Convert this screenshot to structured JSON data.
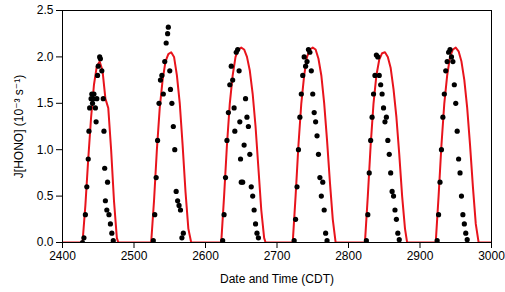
{
  "chart_data": {
    "type": "line",
    "x_label": "Date and Time (CDT)",
    "y_label": "J[HONO] (10⁻³ s⁻¹)",
    "xlim": [
      2400,
      3000
    ],
    "xticks": [
      2400,
      2500,
      2600,
      2700,
      2800,
      2900,
      3000
    ],
    "ylim": [
      0,
      2.5
    ],
    "yticks": [
      {
        "value": 0,
        "label": "0.0"
      },
      0.5,
      {
        "value": 1,
        "label": "1.0"
      },
      1.5,
      {
        "value": 2,
        "label": "2.0"
      },
      2.5
    ],
    "grid": false,
    "series": [
      {
        "type": "line",
        "color": "#e8141c",
        "line_style": "solid",
        "x": [
          2400,
          2428,
          2432,
          2436,
          2440,
          2444,
          2448,
          2452,
          2456,
          2460,
          2464,
          2468,
          2472,
          2476,
          2478,
          2524,
          2528,
          2532,
          2536,
          2540,
          2544,
          2548,
          2552,
          2556,
          2560,
          2564,
          2568,
          2572,
          2576,
          2580,
          2622,
          2626,
          2630,
          2634,
          2638,
          2642,
          2646,
          2650,
          2654,
          2658,
          2662,
          2666,
          2670,
          2674,
          2678,
          2682,
          2684,
          2722,
          2726,
          2730,
          2734,
          2738,
          2742,
          2746,
          2750,
          2754,
          2758,
          2762,
          2766,
          2770,
          2774,
          2778,
          2782,
          2823,
          2827,
          2831,
          2835,
          2839,
          2843,
          2847,
          2851,
          2855,
          2859,
          2863,
          2867,
          2871,
          2875,
          2879,
          2882,
          2922,
          2926,
          2930,
          2934,
          2938,
          2942,
          2946,
          2950,
          2954,
          2958,
          2962,
          2966,
          2970,
          2974,
          2978,
          2982,
          3000
        ],
        "values": [
          0,
          0,
          0.4,
          0.9,
          1.35,
          1.7,
          1.9,
          1.95,
          1.85,
          1.55,
          1.45,
          1.0,
          0.45,
          0.05,
          0,
          0,
          0.45,
          1.0,
          1.45,
          1.75,
          1.95,
          2.03,
          2.05,
          2.0,
          1.8,
          1.5,
          1.05,
          0.55,
          0.15,
          0,
          0,
          0.5,
          1.05,
          1.5,
          1.8,
          2.0,
          2.08,
          2.1,
          2.08,
          2.0,
          1.85,
          1.6,
          1.25,
          0.8,
          0.35,
          0.05,
          0,
          0,
          0.5,
          1.05,
          1.5,
          1.8,
          2.0,
          2.08,
          2.1,
          2.08,
          1.98,
          1.8,
          1.5,
          1.1,
          0.65,
          0.25,
          0,
          0,
          0.5,
          1.05,
          1.5,
          1.8,
          1.97,
          2.04,
          2.05,
          2.0,
          1.88,
          1.65,
          1.35,
          0.95,
          0.5,
          0.15,
          0,
          0,
          0.5,
          1.05,
          1.5,
          1.8,
          2.0,
          2.08,
          2.1,
          2.06,
          1.95,
          1.75,
          1.45,
          1.05,
          0.6,
          0.2,
          0,
          0
        ]
      },
      {
        "type": "scatter",
        "color": "#000000",
        "marker": "circle",
        "x": [
          2428,
          2430,
          2432,
          2434,
          2436,
          2437,
          2438,
          2440,
          2441,
          2442,
          2443,
          2444,
          2446,
          2447,
          2448,
          2449,
          2450,
          2452,
          2453,
          2455,
          2457,
          2458,
          2459,
          2460,
          2462,
          2463,
          2465,
          2467,
          2469,
          2471,
          2527,
          2529,
          2531,
          2533,
          2535,
          2537,
          2539,
          2541,
          2543,
          2545,
          2547,
          2548,
          2550,
          2551,
          2553,
          2555,
          2557,
          2559,
          2561,
          2563,
          2565,
          2567,
          2569,
          2624,
          2626,
          2628,
          2630,
          2632,
          2634,
          2636,
          2638,
          2640,
          2641,
          2643,
          2645,
          2647,
          2648,
          2649,
          2650,
          2652,
          2654,
          2656,
          2658,
          2660,
          2662,
          2664,
          2666,
          2668,
          2670,
          2672,
          2674,
          2724,
          2726,
          2728,
          2730,
          2732,
          2734,
          2736,
          2738,
          2740,
          2742,
          2744,
          2746,
          2748,
          2750,
          2752,
          2754,
          2756,
          2758,
          2760,
          2762,
          2764,
          2766,
          2768,
          2770,
          2825,
          2827,
          2829,
          2831,
          2833,
          2835,
          2837,
          2839,
          2841,
          2843,
          2845,
          2847,
          2849,
          2851,
          2853,
          2855,
          2857,
          2859,
          2861,
          2863,
          2865,
          2867,
          2869,
          2871,
          2924,
          2926,
          2928,
          2930,
          2932,
          2934,
          2936,
          2938,
          2940,
          2942,
          2944,
          2946,
          2948,
          2950,
          2952,
          2954,
          2956,
          2958,
          2960,
          2962,
          2964,
          2966
        ],
        "values": [
          0.0,
          0.05,
          0.3,
          0.6,
          0.9,
          1.2,
          1.45,
          1.55,
          1.6,
          1.5,
          1.55,
          1.6,
          1.45,
          1.3,
          1.55,
          1.8,
          1.9,
          2.0,
          1.98,
          1.85,
          1.55,
          1.2,
          0.8,
          0.45,
          0.35,
          0.65,
          0.3,
          0.2,
          0.1,
          0.02,
          0.02,
          0.3,
          0.7,
          1.1,
          1.5,
          1.75,
          1.8,
          1.6,
          1.95,
          2.15,
          2.25,
          2.32,
          1.85,
          1.65,
          1.5,
          1.25,
          1.0,
          0.55,
          0.45,
          0.4,
          0.35,
          0.05,
          0.1,
          0.02,
          0.3,
          0.7,
          1.1,
          1.4,
          1.7,
          1.9,
          1.75,
          1.45,
          1.2,
          2.05,
          2.08,
          1.85,
          1.3,
          0.9,
          0.65,
          0.65,
          1.05,
          1.55,
          1.35,
          1.25,
          0.95,
          0.6,
          0.5,
          0.35,
          0.2,
          0.1,
          0.05,
          0.02,
          0.25,
          0.6,
          1.0,
          1.35,
          1.6,
          1.8,
          2.0,
          1.9,
          1.95,
          2.08,
          2.05,
          1.85,
          1.6,
          1.4,
          1.3,
          1.15,
          0.95,
          0.7,
          0.5,
          0.65,
          0.35,
          0.1,
          0.02,
          0.02,
          0.3,
          0.75,
          1.1,
          1.35,
          1.6,
          1.8,
          2.02,
          2.0,
          1.8,
          1.7,
          1.6,
          1.45,
          1.3,
          1.35,
          1.1,
          0.95,
          0.75,
          0.55,
          0.5,
          0.35,
          0.25,
          0.1,
          0.03,
          0.02,
          0.3,
          0.65,
          1.0,
          1.35,
          1.6,
          1.85,
          1.95,
          2.05,
          2.08,
          2.0,
          1.95,
          1.7,
          1.5,
          1.2,
          0.9,
          0.75,
          0.5,
          0.3,
          0.2,
          0.1,
          0.03
        ]
      }
    ]
  }
}
